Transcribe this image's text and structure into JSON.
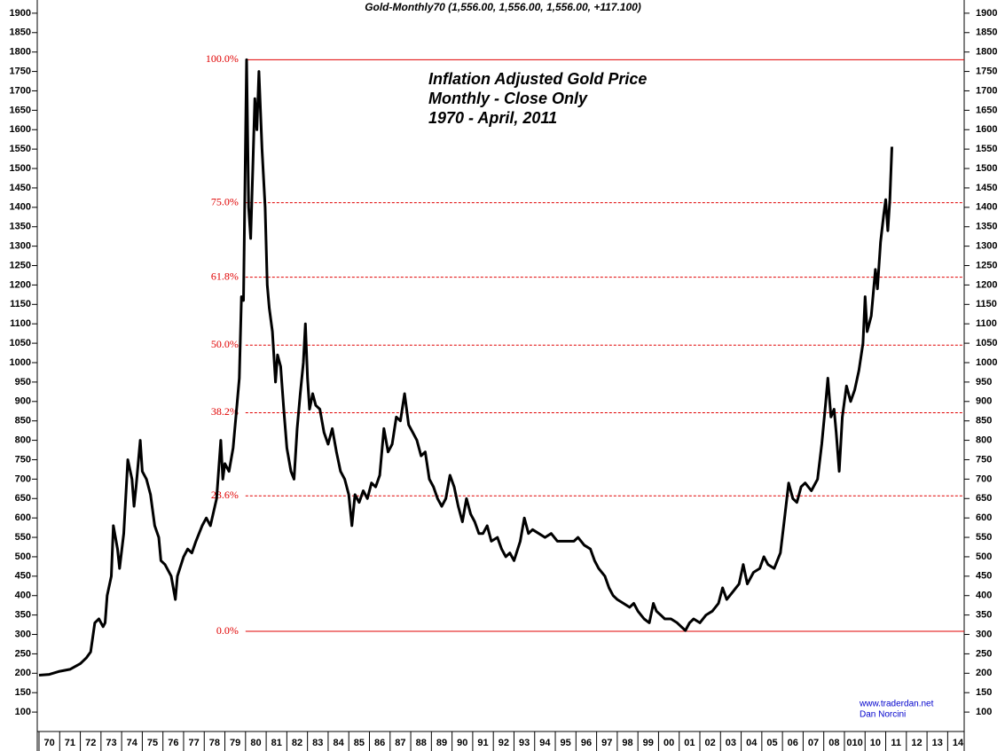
{
  "chart_data": {
    "type": "line",
    "title": "Gold-Monthly70 (1,556.00, 1,556.00, 1,556.00, +117.100)",
    "annotation": [
      "Inflation Adjusted Gold Price",
      "Monthly - Close Only",
      "1970 - April, 2011"
    ],
    "credits": [
      "www.traderdan.net",
      "Dan Norcini"
    ],
    "color": "#000000",
    "x": [
      1970.0,
      1970.5,
      1971.0,
      1971.5,
      1972.0,
      1972.3,
      1972.5,
      1972.7,
      1972.9,
      1973.1,
      1973.2,
      1973.3,
      1973.5,
      1973.6,
      1973.8,
      1973.9,
      1974.1,
      1974.3,
      1974.5,
      1974.6,
      1974.7,
      1974.9,
      1975.0,
      1975.2,
      1975.4,
      1975.6,
      1975.8,
      1975.9,
      1976.1,
      1976.4,
      1976.6,
      1976.7,
      1977.0,
      1977.2,
      1977.4,
      1977.6,
      1977.9,
      1978.1,
      1978.3,
      1978.6,
      1978.8,
      1978.9,
      1979.0,
      1979.2,
      1979.4,
      1979.6,
      1979.7,
      1979.8,
      1979.9,
      1980.05,
      1980.15,
      1980.25,
      1980.35,
      1980.45,
      1980.55,
      1980.65,
      1980.8,
      1980.95,
      1981.05,
      1981.15,
      1981.3,
      1981.45,
      1981.55,
      1981.7,
      1981.85,
      1982.0,
      1982.2,
      1982.35,
      1982.5,
      1982.65,
      1982.8,
      1982.9,
      1983.0,
      1983.1,
      1983.25,
      1983.4,
      1983.6,
      1983.8,
      1984.0,
      1984.2,
      1984.4,
      1984.6,
      1984.8,
      1985.0,
      1985.15,
      1985.3,
      1985.5,
      1985.7,
      1985.9,
      1986.1,
      1986.3,
      1986.5,
      1986.7,
      1986.9,
      1987.1,
      1987.3,
      1987.5,
      1987.7,
      1987.9,
      1988.1,
      1988.3,
      1988.5,
      1988.7,
      1988.9,
      1989.1,
      1989.3,
      1989.5,
      1989.7,
      1989.9,
      1990.1,
      1990.3,
      1990.5,
      1990.7,
      1990.9,
      1991.1,
      1991.3,
      1991.5,
      1991.7,
      1991.9,
      1992.2,
      1992.4,
      1992.6,
      1992.8,
      1993.0,
      1993.3,
      1993.5,
      1993.7,
      1993.9,
      1994.2,
      1994.5,
      1994.8,
      1995.1,
      1995.5,
      1995.9,
      1996.1,
      1996.4,
      1996.7,
      1996.9,
      1997.1,
      1997.4,
      1997.6,
      1997.8,
      1998.0,
      1998.3,
      1998.6,
      1998.8,
      1999.0,
      1999.3,
      1999.55,
      1999.75,
      1999.9,
      2000.1,
      2000.3,
      2000.6,
      2000.9,
      2001.1,
      2001.3,
      2001.5,
      2001.7,
      2002.0,
      2002.3,
      2002.6,
      2002.9,
      2003.1,
      2003.3,
      2003.6,
      2003.9,
      2004.1,
      2004.3,
      2004.6,
      2004.9,
      2005.1,
      2005.3,
      2005.6,
      2005.9,
      2006.1,
      2006.3,
      2006.5,
      2006.7,
      2006.9,
      2007.1,
      2007.4,
      2007.7,
      2007.9,
      2008.1,
      2008.2,
      2008.35,
      2008.5,
      2008.6,
      2008.75,
      2008.9,
      2009.1,
      2009.3,
      2009.5,
      2009.7,
      2009.9,
      2010.0,
      2010.1,
      2010.3,
      2010.5,
      2010.6,
      2010.75,
      2010.9,
      2011.0,
      2011.1,
      2011.2,
      2011.3
    ],
    "values": [
      195,
      197,
      205,
      210,
      225,
      240,
      255,
      330,
      340,
      320,
      330,
      400,
      450,
      580,
      520,
      470,
      560,
      750,
      700,
      630,
      680,
      800,
      720,
      700,
      660,
      580,
      550,
      490,
      480,
      450,
      390,
      450,
      500,
      520,
      510,
      540,
      580,
      600,
      580,
      650,
      800,
      700,
      740,
      720,
      780,
      900,
      960,
      1170,
      1160,
      1780,
      1400,
      1320,
      1500,
      1680,
      1600,
      1750,
      1550,
      1400,
      1200,
      1140,
      1080,
      950,
      1020,
      990,
      880,
      780,
      720,
      700,
      830,
      920,
      1000,
      1100,
      960,
      880,
      920,
      890,
      880,
      820,
      790,
      830,
      770,
      720,
      700,
      660,
      580,
      660,
      640,
      670,
      650,
      690,
      680,
      710,
      830,
      770,
      790,
      860,
      850,
      920,
      840,
      820,
      800,
      760,
      770,
      700,
      680,
      650,
      630,
      650,
      710,
      680,
      630,
      590,
      650,
      610,
      590,
      560,
      560,
      580,
      540,
      550,
      520,
      500,
      510,
      490,
      540,
      600,
      560,
      570,
      560,
      550,
      560,
      540,
      540,
      540,
      550,
      530,
      520,
      490,
      470,
      450,
      420,
      400,
      390,
      380,
      370,
      380,
      360,
      340,
      330,
      380,
      360,
      350,
      340,
      340,
      330,
      320,
      310,
      330,
      340,
      330,
      350,
      360,
      380,
      420,
      390,
      410,
      430,
      480,
      430,
      460,
      470,
      500,
      480,
      470,
      510,
      600,
      690,
      650,
      640,
      680,
      690,
      670,
      700,
      790,
      900,
      960,
      860,
      880,
      820,
      720,
      860,
      940,
      900,
      930,
      980,
      1050,
      1170,
      1080,
      1120,
      1240,
      1190,
      1310,
      1380,
      1420,
      1340,
      1420,
      1556
    ],
    "xlim": [
      1970,
      2014.8
    ],
    "xticks": [
      {
        "value": 1970,
        "label": "70"
      },
      {
        "value": 1971,
        "label": "71"
      },
      {
        "value": 1972,
        "label": "72"
      },
      {
        "value": 1973,
        "label": "73"
      },
      {
        "value": 1974,
        "label": "74"
      },
      {
        "value": 1975,
        "label": "75"
      },
      {
        "value": 1976,
        "label": "76"
      },
      {
        "value": 1977,
        "label": "77"
      },
      {
        "value": 1978,
        "label": "78"
      },
      {
        "value": 1979,
        "label": "79"
      },
      {
        "value": 1980,
        "label": "80"
      },
      {
        "value": 1981,
        "label": "81"
      },
      {
        "value": 1982,
        "label": "82"
      },
      {
        "value": 1983,
        "label": "83"
      },
      {
        "value": 1984,
        "label": "84"
      },
      {
        "value": 1985,
        "label": "85"
      },
      {
        "value": 1986,
        "label": "86"
      },
      {
        "value": 1987,
        "label": "87"
      },
      {
        "value": 1988,
        "label": "88"
      },
      {
        "value": 1989,
        "label": "89"
      },
      {
        "value": 1990,
        "label": "90"
      },
      {
        "value": 1991,
        "label": "91"
      },
      {
        "value": 1992,
        "label": "92"
      },
      {
        "value": 1993,
        "label": "93"
      },
      {
        "value": 1994,
        "label": "94"
      },
      {
        "value": 1995,
        "label": "95"
      },
      {
        "value": 1996,
        "label": "96"
      },
      {
        "value": 1997,
        "label": "97"
      },
      {
        "value": 1998,
        "label": "98"
      },
      {
        "value": 1999,
        "label": "99"
      },
      {
        "value": 2000,
        "label": "00"
      },
      {
        "value": 2001,
        "label": "01"
      },
      {
        "value": 2002,
        "label": "02"
      },
      {
        "value": 2003,
        "label": "03"
      },
      {
        "value": 2004,
        "label": "04"
      },
      {
        "value": 2005,
        "label": "05"
      },
      {
        "value": 2006,
        "label": "06"
      },
      {
        "value": 2007,
        "label": "07"
      },
      {
        "value": 2008,
        "label": "08"
      },
      {
        "value": 2009,
        "label": "010"
      },
      {
        "value": 2010,
        "label": "10"
      },
      {
        "value": 2011,
        "label": "11"
      },
      {
        "value": 2012,
        "label": "12"
      },
      {
        "value": 2013,
        "label": "13"
      },
      {
        "value": 2014,
        "label": "14"
      }
    ],
    "ylim": [
      50,
      1934
    ],
    "yticks": [
      100,
      150,
      200,
      250,
      300,
      350,
      400,
      450,
      500,
      550,
      600,
      650,
      700,
      750,
      800,
      850,
      900,
      950,
      1000,
      1050,
      1100,
      1150,
      1200,
      1250,
      1300,
      1350,
      1400,
      1450,
      1500,
      1550,
      1600,
      1650,
      1700,
      1750,
      1800,
      1850,
      1900
    ],
    "levels": [
      {
        "label": "100.0%",
        "value": 1780,
        "dashed": false
      },
      {
        "label": "75.0%",
        "value": 1412,
        "dashed": true
      },
      {
        "label": "61.8%",
        "value": 1220,
        "dashed": true
      },
      {
        "label": "50.0%",
        "value": 1045,
        "dashed": true
      },
      {
        "label": "38.2%",
        "value": 871,
        "dashed": true
      },
      {
        "label": "23.6%",
        "value": 657,
        "dashed": true
      },
      {
        "label": "0.0%",
        "value": 308,
        "dashed": false
      }
    ],
    "level_color": "#e00000",
    "level_start": 1980.0
  }
}
